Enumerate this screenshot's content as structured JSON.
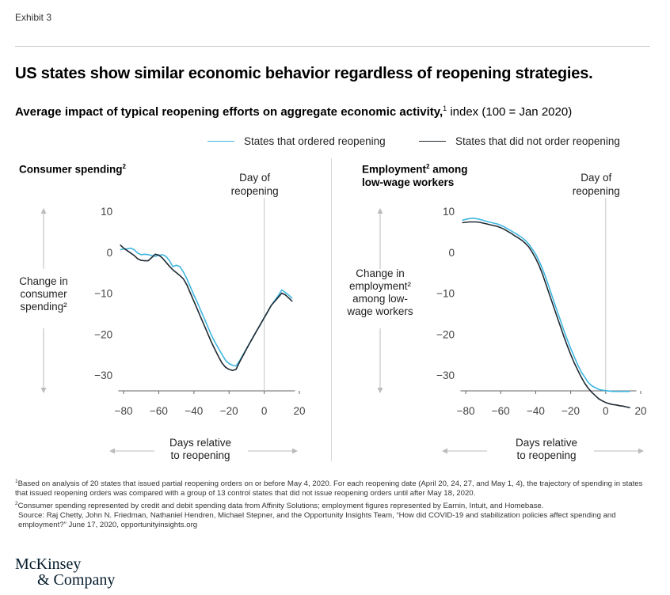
{
  "header": {
    "exhibit": "Exhibit 3",
    "title": "US states show similar economic behavior regardless of reopening strategies.",
    "subtitle_bold": "Average impact of typical reopening efforts on aggregate economic activity,",
    "subtitle_sup": "1",
    "subtitle_rest": " index (100 = Jan 2020)"
  },
  "legend": [
    {
      "label": "States that ordered reopening",
      "color": "#3fb6e0"
    },
    {
      "label": "States that did not order reopening",
      "color": "#1f2a33"
    }
  ],
  "chart_data": [
    {
      "type": "line",
      "title": "Consumer spending",
      "title_sup": "2",
      "ylabel_lines": [
        "Change in",
        "consumer",
        "spending²"
      ],
      "xlabel_lines": [
        "Days relative",
        "to reopening"
      ],
      "reference_label_lines": [
        "Day of",
        "reopening"
      ],
      "reference_x": 0,
      "xlim": [
        -85,
        20
      ],
      "ylim": [
        -33,
        11
      ],
      "xticks": [
        -80,
        -60,
        -40,
        -20,
        0,
        20
      ],
      "xtick_labels": [
        "−80",
        "−60",
        "−40",
        "−20",
        "0",
        "20"
      ],
      "yticks": [
        10,
        0,
        -10,
        -20,
        -30
      ],
      "ytick_labels": [
        "10",
        "0",
        "−10",
        "−20",
        "−30"
      ],
      "series": [
        {
          "name": "States that ordered reopening",
          "color": "#3fb6e0",
          "x": [
            -82,
            -80,
            -78,
            -76,
            -74,
            -72,
            -70,
            -68,
            -66,
            -64,
            -62,
            -60,
            -58,
            -56,
            -54,
            -52,
            -50,
            -48,
            -46,
            -44,
            -42,
            -40,
            -38,
            -36,
            -34,
            -32,
            -30,
            -28,
            -26,
            -24,
            -22,
            -20,
            -18,
            -16,
            -14,
            -12,
            -10,
            -8,
            -6,
            -4,
            -2,
            0,
            2,
            4,
            6,
            8,
            10,
            12,
            14,
            16
          ],
          "y": [
            0.6,
            0.8,
            0.8,
            1.0,
            0.6,
            -0.2,
            -0.6,
            -0.5,
            -0.6,
            -0.8,
            -1.0,
            -0.8,
            -0.6,
            -1.0,
            -2.0,
            -3.5,
            -3.2,
            -3.5,
            -4.8,
            -6.5,
            -8.5,
            -10.5,
            -12.3,
            -14.3,
            -16.3,
            -18.3,
            -20.3,
            -22.0,
            -23.5,
            -25.0,
            -26.4,
            -27.2,
            -27.6,
            -27.8,
            -26.5,
            -25.0,
            -23.5,
            -22.0,
            -20.5,
            -19.0,
            -17.5,
            -16.0,
            -14.5,
            -13.0,
            -11.8,
            -10.6,
            -9.2,
            -9.8,
            -10.5,
            -11.3
          ]
        },
        {
          "name": "States that did not order reopening",
          "color": "#1f2a33",
          "x": [
            -82,
            -80,
            -78,
            -76,
            -74,
            -72,
            -70,
            -68,
            -66,
            -64,
            -62,
            -60,
            -58,
            -56,
            -54,
            -52,
            -50,
            -48,
            -46,
            -44,
            -42,
            -40,
            -38,
            -36,
            -34,
            -32,
            -30,
            -28,
            -26,
            -24,
            -22,
            -20,
            -18,
            -16,
            -14,
            -12,
            -10,
            -8,
            -6,
            -4,
            -2,
            0,
            2,
            4,
            6,
            8,
            10,
            12,
            14,
            16
          ],
          "y": [
            1.8,
            1.0,
            0.4,
            -0.2,
            -0.8,
            -1.6,
            -2.0,
            -2.1,
            -2.1,
            -1.3,
            -0.5,
            -0.7,
            -1.4,
            -2.4,
            -3.4,
            -4.3,
            -5.0,
            -5.7,
            -6.5,
            -8.0,
            -10.0,
            -12.0,
            -14.0,
            -16.0,
            -18.0,
            -20.0,
            -22.0,
            -23.8,
            -25.5,
            -27.1,
            -28.1,
            -28.6,
            -28.9,
            -28.6,
            -26.8,
            -25.2,
            -23.6,
            -22.0,
            -20.5,
            -19.0,
            -17.5,
            -16.0,
            -14.5,
            -13.0,
            -12.0,
            -11.0,
            -10.0,
            -10.4,
            -11.2,
            -12.0
          ]
        }
      ]
    },
    {
      "type": "line",
      "title": "Employment",
      "title_sup": "2",
      "title_rest_lines": [
        " among",
        "low-wage workers"
      ],
      "ylabel_lines": [
        "Change in",
        "employment²",
        "among low-",
        "wage workers"
      ],
      "xlabel_lines": [
        "Days relative",
        "to reopening"
      ],
      "reference_label_lines": [
        "Day of",
        "reopening"
      ],
      "reference_x": 0,
      "xlim": [
        -85,
        20
      ],
      "ylim": [
        -33,
        11
      ],
      "xticks": [
        -80,
        -60,
        -40,
        -20,
        0,
        20
      ],
      "xtick_labels": [
        "−80",
        "−60",
        "−40",
        "−20",
        "0",
        "20"
      ],
      "yticks": [
        10,
        0,
        -10,
        -20,
        -30
      ],
      "ytick_labels": [
        "10",
        "0",
        "−10",
        "−20",
        "−30"
      ],
      "series": [
        {
          "name": "States that ordered reopening",
          "color": "#3fb6e0",
          "x": [
            -82,
            -80,
            -78,
            -76,
            -74,
            -72,
            -70,
            -68,
            -66,
            -64,
            -62,
            -60,
            -58,
            -56,
            -54,
            -52,
            -50,
            -48,
            -46,
            -44,
            -42,
            -40,
            -38,
            -36,
            -34,
            -32,
            -30,
            -28,
            -26,
            -24,
            -22,
            -20,
            -18,
            -16,
            -14,
            -12,
            -10,
            -8,
            -6,
            -4,
            -2,
            0,
            2,
            4,
            6,
            8,
            10,
            12,
            14
          ],
          "y": [
            7.8,
            8.0,
            8.2,
            8.3,
            8.2,
            8.0,
            7.8,
            7.5,
            7.3,
            7.1,
            6.9,
            6.6,
            6.2,
            5.7,
            5.2,
            4.7,
            4.2,
            3.6,
            2.9,
            2.0,
            0.8,
            -0.5,
            -2.2,
            -4.2,
            -6.5,
            -9.0,
            -11.5,
            -14.0,
            -16.5,
            -19.0,
            -21.3,
            -23.5,
            -25.5,
            -27.5,
            -29.2,
            -30.5,
            -31.8,
            -32.6,
            -33.1,
            -33.5,
            -33.7,
            -33.8,
            -33.9,
            -34.0,
            -34.0,
            -34.0,
            -34.0,
            -34.0,
            -34.0
          ]
        },
        {
          "name": "States that did not order reopening",
          "color": "#1f2a33",
          "x": [
            -82,
            -80,
            -78,
            -76,
            -74,
            -72,
            -70,
            -68,
            -66,
            -64,
            -62,
            -60,
            -58,
            -56,
            -54,
            -52,
            -50,
            -48,
            -46,
            -44,
            -42,
            -40,
            -38,
            -36,
            -34,
            -32,
            -30,
            -28,
            -26,
            -24,
            -22,
            -20,
            -18,
            -16,
            -14,
            -12,
            -10,
            -8,
            -6,
            -4,
            -2,
            0,
            2,
            4,
            6,
            8,
            10,
            12,
            14
          ],
          "y": [
            7.2,
            7.3,
            7.4,
            7.4,
            7.4,
            7.3,
            7.1,
            6.9,
            6.7,
            6.5,
            6.3,
            6.0,
            5.6,
            5.1,
            4.6,
            4.0,
            3.5,
            2.9,
            2.2,
            1.3,
            0.0,
            -1.5,
            -3.3,
            -5.5,
            -8.0,
            -10.5,
            -13.0,
            -15.5,
            -18.0,
            -20.5,
            -22.8,
            -25.0,
            -27.0,
            -28.8,
            -30.5,
            -32.0,
            -33.2,
            -34.2,
            -35.0,
            -35.8,
            -36.3,
            -36.7,
            -37.0,
            -37.2,
            -37.3,
            -37.5,
            -37.6,
            -37.8,
            -38.0
          ]
        }
      ]
    }
  ],
  "footnotes": {
    "fn1_sup": "1",
    "fn1": "Based on analysis of 20 states that issued partial reopening orders on or before May 4, 2020. For each reopening date (April 20, 24, 27, and May 1, 4), the trajectory of spending in states that issued reopening orders was compared with a group of 13 control states that did not issue reopening orders until after May 18, 2020.",
    "fn2_sup": "2",
    "fn2": "Consumer spending represented by credit and debit spending data from Affinity Solutions; employment figures represented by Earnin, Intuit, and Homebase.",
    "source": "Source: Raj Chetty, John N. Friedman, Nathaniel Hendren, Michael Stepner, and the Opportunity Insights Team, “How did COVID-19 and stabilization policies affect spending and employment?” June 17, 2020, opportunityinsights.org"
  },
  "logo": {
    "line1": "McKinsey",
    "line2": "& Company"
  }
}
